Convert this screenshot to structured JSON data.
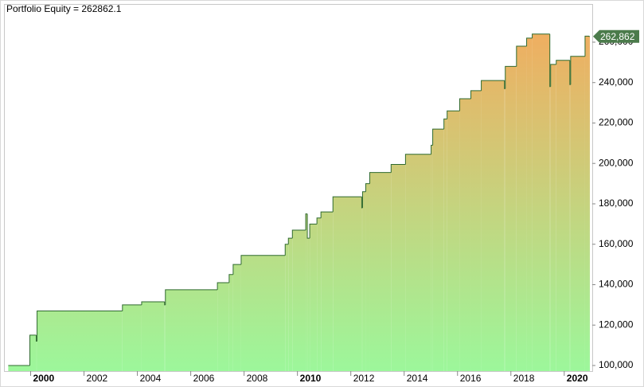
{
  "chart_data": {
    "type": "step-area",
    "title": "Portfolio Equity = 262862.1",
    "x": [
      1999.16,
      1999.97,
      2000.21,
      2000.24,
      2003.44,
      2004.16,
      2005.02,
      2005.05,
      2007.0,
      2007.44,
      2007.59,
      2007.89,
      2009.54,
      2009.66,
      2009.81,
      2010.31,
      2010.37,
      2010.46,
      2010.73,
      2010.88,
      2011.33,
      2012.41,
      2012.44,
      2012.56,
      2012.71,
      2013.51,
      2014.05,
      2015.01,
      2015.07,
      2015.49,
      2015.61,
      2016.08,
      2016.5,
      2016.89,
      2017.76,
      2017.79,
      2018.21,
      2018.59,
      2018.8,
      2019.46,
      2019.49,
      2019.7,
      2020.21,
      2020.24,
      2020.78,
      2020.93
    ],
    "series": [
      {
        "name": "Portfolio Equity",
        "color": "#2f6a2f",
        "fill_top": "#f2ac5f",
        "fill_bottom": "#9cf79b",
        "values": [
          100000,
          115000,
          112000,
          127000,
          130000,
          131500,
          130000,
          137500,
          141000,
          145000,
          150000,
          154500,
          160000,
          163000,
          167000,
          175000,
          163000,
          170000,
          173000,
          176000,
          183500,
          178000,
          186000,
          190000,
          195500,
          199500,
          204500,
          209000,
          217000,
          222000,
          226000,
          232000,
          236000,
          241000,
          237000,
          248000,
          258000,
          262000,
          264000,
          238000,
          249000,
          251000,
          239000,
          253000,
          263000,
          262862.1
        ]
      }
    ],
    "last_value": {
      "value": 262862.1,
      "label": "262,862"
    },
    "xlim": [
      1999.0,
      2021.05
    ],
    "xticks": [
      2000,
      2002,
      2004,
      2006,
      2008,
      2010,
      2012,
      2014,
      2016,
      2018,
      2020
    ],
    "ylim": [
      97240,
      278900
    ],
    "yticks": [
      {
        "value": 100000,
        "label": "100,000"
      },
      {
        "value": 120000,
        "label": "120,000"
      },
      {
        "value": 140000,
        "label": "140,000"
      },
      {
        "value": 160000,
        "label": "160,000"
      },
      {
        "value": 180000,
        "label": "180,000"
      },
      {
        "value": 200000,
        "label": "200,000"
      },
      {
        "value": 220000,
        "label": "220,000"
      },
      {
        "value": 240000,
        "label": "240,000"
      },
      {
        "value": 260000,
        "label": "260,000"
      }
    ],
    "grid": false
  }
}
